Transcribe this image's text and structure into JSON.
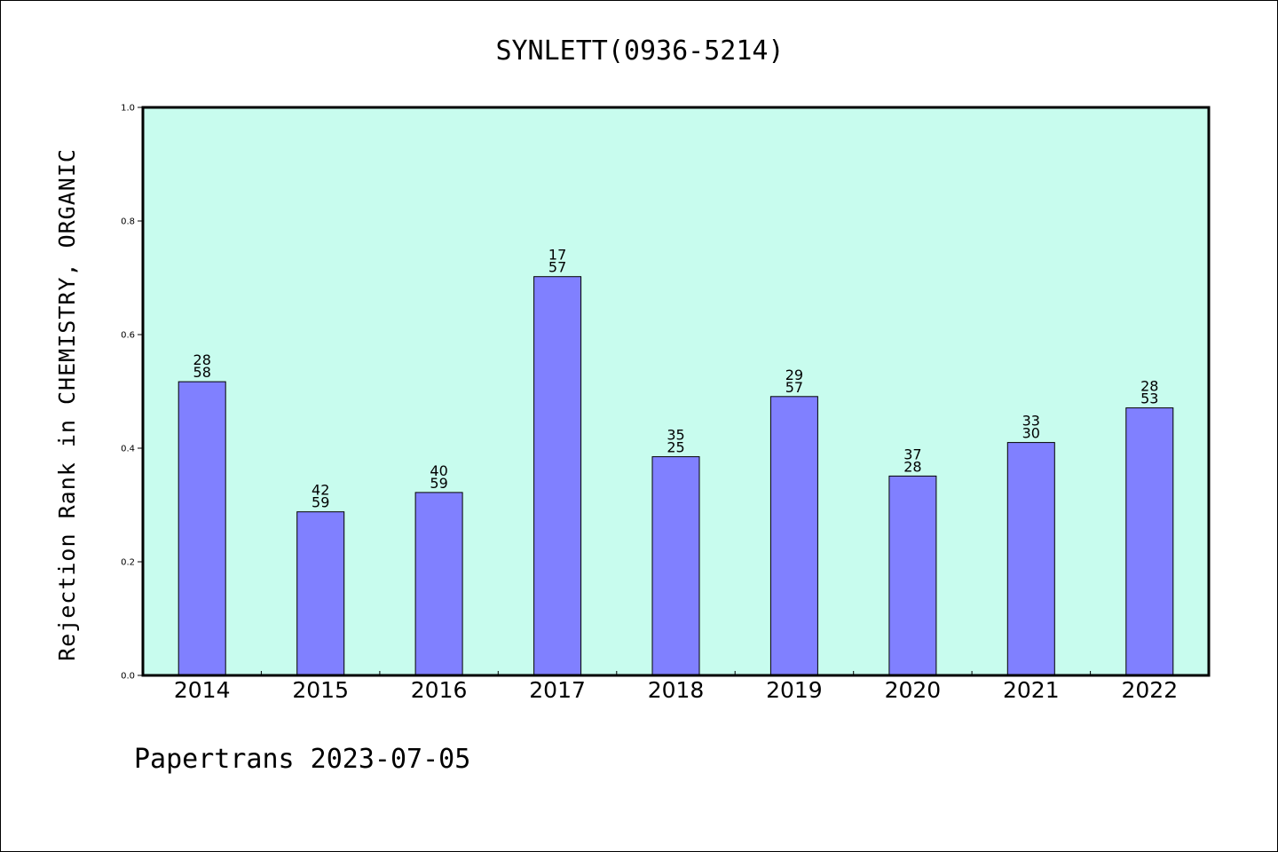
{
  "chart_data": {
    "type": "bar",
    "title": "SYNLETT(0936-5214)",
    "xlabel": "",
    "ylabel": "Rejection Rank in CHEMISTRY, ORGANIC",
    "ylim": [
      0,
      1.0
    ],
    "yticks": [
      "0.0",
      "0.2",
      "0.4",
      "0.6",
      "0.8",
      "1.0"
    ],
    "categories": [
      "2014",
      "2015",
      "2016",
      "2017",
      "2018",
      "2019",
      "2020",
      "2021",
      "2022"
    ],
    "values": [
      0.517,
      0.288,
      0.322,
      0.702,
      0.385,
      0.491,
      0.351,
      0.41,
      0.471
    ],
    "labels_top": [
      "28",
      "42",
      "40",
      "17",
      "35",
      "29",
      "37",
      "33",
      "28"
    ],
    "labels_bottom": [
      "58",
      "59",
      "59",
      "57",
      "25",
      "57",
      "28",
      "30",
      "53"
    ],
    "grid": false,
    "colors": {
      "plot_background": "#c8fcee",
      "bar_fill": "#8080ff",
      "bar_stroke": "#000000"
    }
  },
  "footer": {
    "text": "Papertrans 2023-07-05"
  }
}
